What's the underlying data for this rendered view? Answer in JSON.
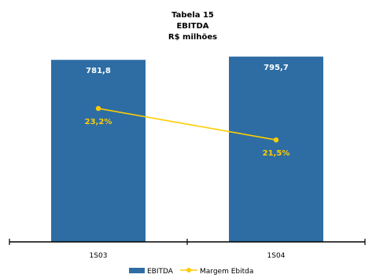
{
  "chart_data": {
    "type": "bar",
    "title": "Tabela 15",
    "subtitle": "EBITDA",
    "unit_label": "R$ milhões",
    "categories": [
      "1S03",
      "1S04"
    ],
    "series": [
      {
        "name": "EBITDA",
        "type": "bar",
        "color": "#2e6da4",
        "values": [
          781.8,
          795.7
        ],
        "labels": [
          "781,8",
          "795,7"
        ]
      },
      {
        "name": "Margem Ebitda",
        "type": "line",
        "color": "#ffcc00",
        "values": [
          23.2,
          21.5
        ],
        "labels": [
          "23,2%",
          "21,5%"
        ]
      }
    ],
    "ylim": [
      0,
      796
    ],
    "y2lim": [
      16,
      26
    ],
    "grid": false,
    "legend_position": "bottom-center"
  }
}
